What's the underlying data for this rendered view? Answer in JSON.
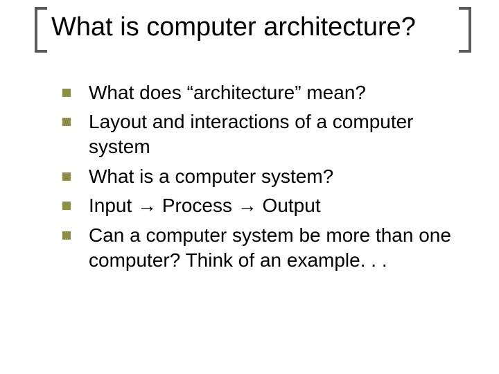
{
  "title": "What is computer architecture?",
  "bullets": {
    "b0": "What does “architecture” mean?",
    "b1": "Layout and interactions of a computer system",
    "b2": "What is a computer system?",
    "b3": "Input → Process → Output",
    "b4": "Can a computer system be more than one computer?  Think of an example. . ."
  },
  "style": {
    "bullet_color": "#8e8e42",
    "bracket_color": "#5a5a5a",
    "title_fontsize": 38,
    "body_fontsize": 28,
    "background": "#ffffff"
  }
}
